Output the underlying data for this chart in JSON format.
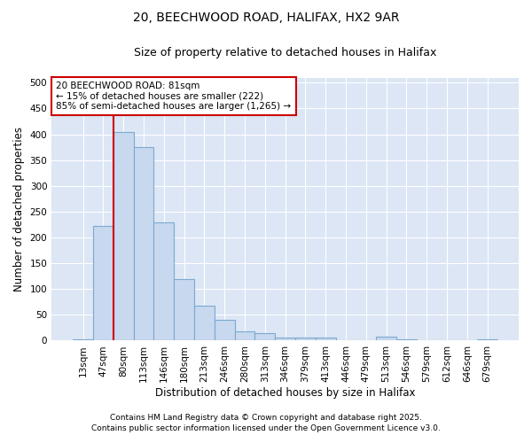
{
  "title1": "20, BEECHWOOD ROAD, HALIFAX, HX2 9AR",
  "title2": "Size of property relative to detached houses in Halifax",
  "xlabel": "Distribution of detached houses by size in Halifax",
  "ylabel": "Number of detached properties",
  "categories": [
    "13sqm",
    "47sqm",
    "80sqm",
    "113sqm",
    "146sqm",
    "180sqm",
    "213sqm",
    "246sqm",
    "280sqm",
    "313sqm",
    "346sqm",
    "379sqm",
    "413sqm",
    "446sqm",
    "479sqm",
    "513sqm",
    "546sqm",
    "579sqm",
    "612sqm",
    "646sqm",
    "679sqm"
  ],
  "values": [
    3,
    222,
    405,
    375,
    230,
    120,
    68,
    40,
    18,
    14,
    6,
    6,
    6,
    0,
    0,
    7,
    3,
    0,
    0,
    1,
    3
  ],
  "bar_color": "#c8d8ee",
  "bar_edge_color": "#7aaad0",
  "bar_edge_width": 0.8,
  "vline_x_index": 2,
  "vline_color": "#cc0000",
  "annotation_line1": "20 BEECHWOOD ROAD: 81sqm",
  "annotation_line2": "← 15% of detached houses are smaller (222)",
  "annotation_line3": "85% of semi-detached houses are larger (1,265) →",
  "box_edge_color": "#cc0000",
  "ylim": [
    0,
    510
  ],
  "yticks": [
    0,
    50,
    100,
    150,
    200,
    250,
    300,
    350,
    400,
    450,
    500
  ],
  "footer1": "Contains HM Land Registry data © Crown copyright and database right 2025.",
  "footer2": "Contains public sector information licensed under the Open Government Licence v3.0.",
  "fig_bg_color": "#ffffff",
  "plot_bg_color": "#dce6f5",
  "grid_color": "#ffffff",
  "title_fontsize": 10,
  "subtitle_fontsize": 9,
  "axis_label_fontsize": 8.5,
  "tick_fontsize": 7.5,
  "footer_fontsize": 6.5,
  "annot_fontsize": 7.5
}
